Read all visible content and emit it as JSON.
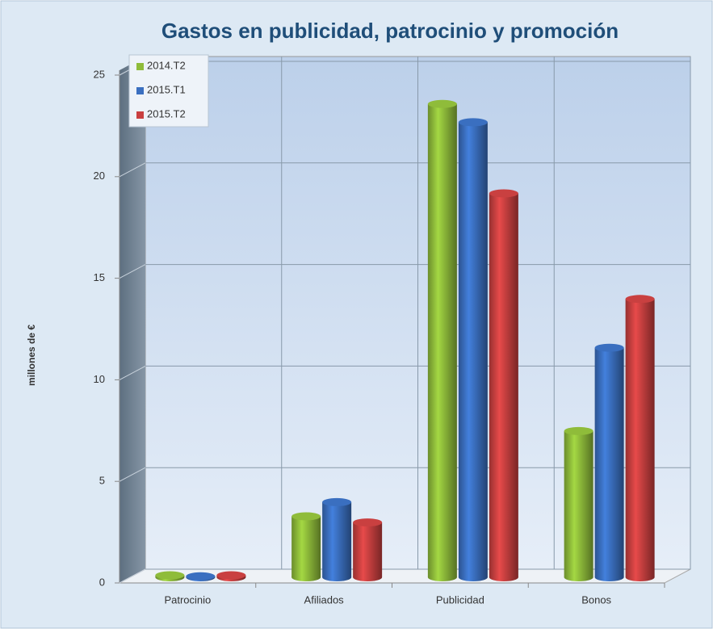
{
  "chart_data": {
    "type": "bar3d",
    "title": "Gastos en publicidad, patrocinio y promoción",
    "y_label": "millones de €",
    "categories": [
      "Patrocinio",
      "Afiliados",
      "Publicidad",
      "Bonos"
    ],
    "series": [
      {
        "name": "2014.T2",
        "color": "#8fbc3a",
        "values": [
          0.1,
          3.0,
          23.3,
          7.2
        ]
      },
      {
        "name": "2015.T1",
        "color": "#3a6fc0",
        "values": [
          0.05,
          3.7,
          22.4,
          11.3
        ]
      },
      {
        "name": "2015.T2",
        "color": "#c94040",
        "values": [
          0.1,
          2.7,
          18.9,
          13.7
        ]
      }
    ],
    "ylim": [
      0,
      25
    ],
    "yticks": [
      0,
      5,
      10,
      15,
      20,
      25
    ],
    "grid": true,
    "legend": "top-left"
  }
}
